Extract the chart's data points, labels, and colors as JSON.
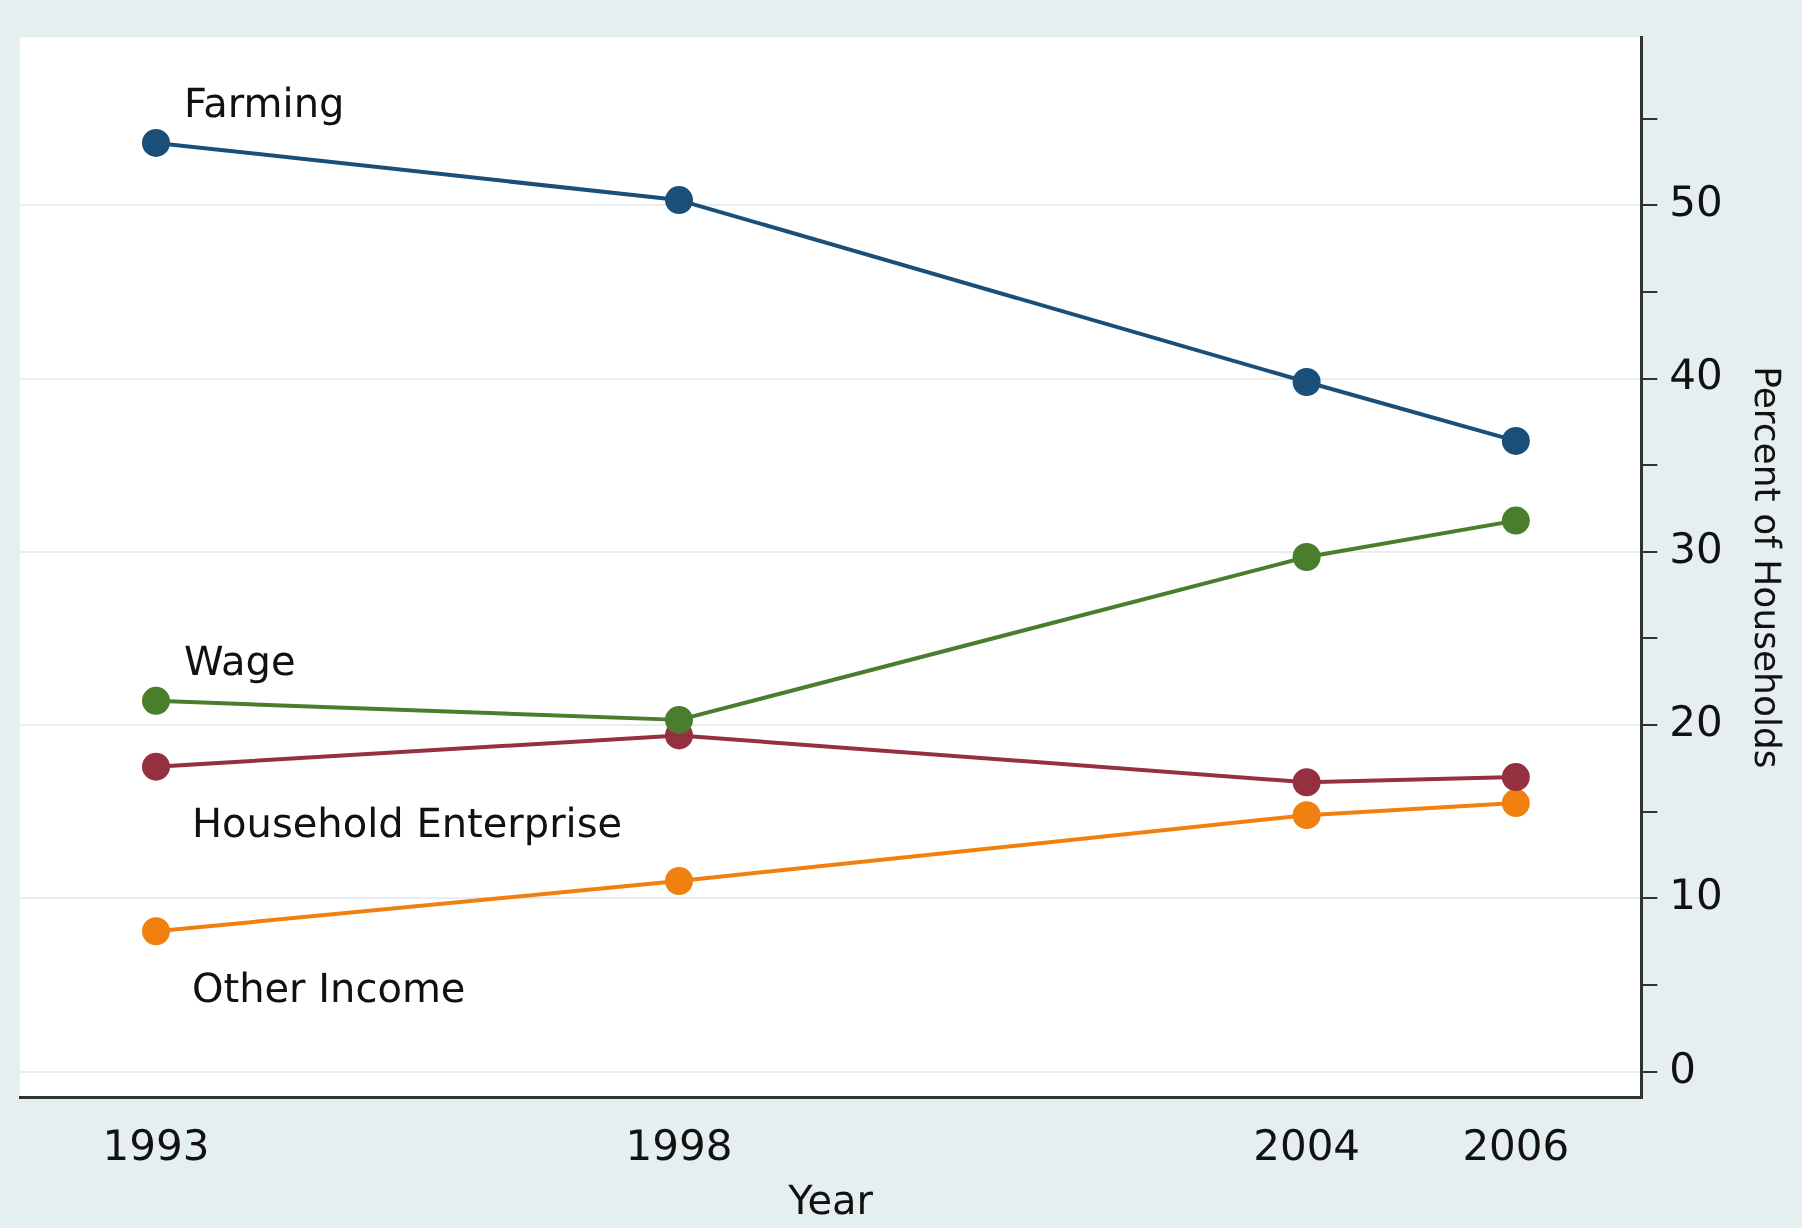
{
  "chart_data": {
    "type": "line",
    "xlabel": "Year",
    "ylabel": "Percent of Households",
    "x": [
      1993,
      1998,
      2004,
      2006
    ],
    "series": [
      {
        "name": "Farming",
        "color": "#1a4f7a",
        "values": [
          53.6,
          50.3,
          39.8,
          36.4
        ]
      },
      {
        "name": "Wage",
        "color": "#4a7d2c",
        "values": [
          21.4,
          20.3,
          29.7,
          31.8
        ]
      },
      {
        "name": "Household Enterprise",
        "color": "#94303f",
        "values": [
          17.6,
          19.4,
          16.7,
          17.0
        ]
      },
      {
        "name": "Other Income",
        "color": "#f0800f",
        "values": [
          8.1,
          11.0,
          14.8,
          15.5
        ]
      }
    ],
    "xlim": [
      1991.7,
      2007.2
    ],
    "xticks": [
      1993,
      1998,
      2004,
      2006
    ],
    "ylim": [
      -1.5,
      59.7
    ],
    "yticks": [
      0,
      {
        "value": 5,
        "label": null
      },
      10,
      {
        "value": 15,
        "label": null
      },
      20,
      {
        "value": 25,
        "label": null
      },
      30,
      {
        "value": 35,
        "label": null
      },
      40,
      {
        "value": 45,
        "label": null
      },
      50,
      {
        "value": 55,
        "label": null
      }
    ],
    "grid": "y",
    "legend": false,
    "marker": "circle",
    "line_style": "solid"
  }
}
